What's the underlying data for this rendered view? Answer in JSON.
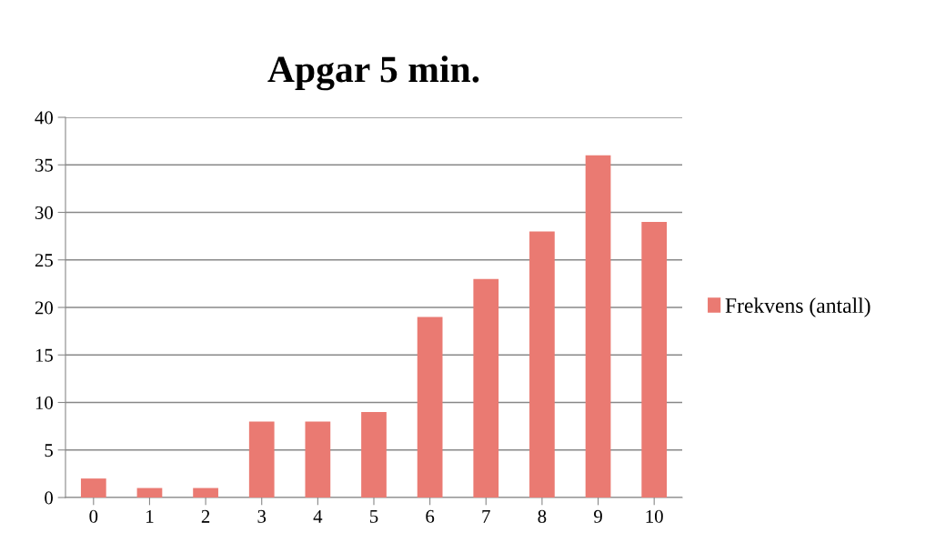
{
  "chart_data": {
    "type": "bar",
    "title": "Apgar 5 min.",
    "categories": [
      "0",
      "1",
      "2",
      "3",
      "4",
      "5",
      "6",
      "7",
      "8",
      "9",
      "10"
    ],
    "series": [
      {
        "name": "Frekvens (antall)",
        "color": "#ea7a72",
        "values": [
          2,
          1,
          1,
          8,
          8,
          9,
          19,
          23,
          28,
          36,
          29
        ]
      }
    ],
    "ylim": [
      0,
      40
    ],
    "yticks": [
      0,
      5,
      10,
      15,
      20,
      25,
      30,
      35,
      40
    ],
    "grid": "y",
    "legend": "right"
  }
}
